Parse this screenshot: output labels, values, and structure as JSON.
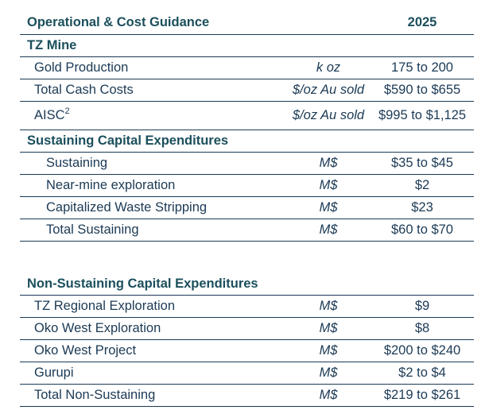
{
  "header": {
    "title": "Operational & Cost Guidance",
    "year": "2025"
  },
  "tz_mine": {
    "section_label": "TZ Mine",
    "rows": [
      {
        "label": "Gold Production",
        "unit": "k oz",
        "value": "175 to 200"
      },
      {
        "label": "Total Cash Costs",
        "unit": "$/oz Au sold",
        "value": "$590 to $655"
      },
      {
        "label": "AISC",
        "label_sup": "2",
        "unit": "$/oz Au sold",
        "value": "$995 to $1,125"
      }
    ]
  },
  "sustaining_capex": {
    "section_label": "Sustaining Capital Expenditures",
    "rows": [
      {
        "label": "Sustaining",
        "unit": "M$",
        "value": "$35 to $45"
      },
      {
        "label": "Near-mine exploration",
        "unit": "M$",
        "value": "$2"
      },
      {
        "label": "Capitalized Waste Stripping",
        "unit": "M$",
        "value": "$23"
      },
      {
        "label": "Total Sustaining",
        "unit": "M$",
        "value": "$60 to $70"
      }
    ]
  },
  "non_sustaining_capex": {
    "section_label": "Non-Sustaining Capital Expenditures",
    "rows": [
      {
        "label": "TZ Regional Exploration",
        "unit": "M$",
        "value": "$9"
      },
      {
        "label": "Oko West Exploration",
        "unit": "M$",
        "value": "$8"
      },
      {
        "label": "Oko West Project",
        "unit": "M$",
        "value": "$200 to $240"
      },
      {
        "label": "Gurupi",
        "unit": "M$",
        "value": "$2 to $4"
      },
      {
        "label": "Total Non-Sustaining",
        "unit": "M$",
        "value": "$219 to $261"
      }
    ]
  }
}
